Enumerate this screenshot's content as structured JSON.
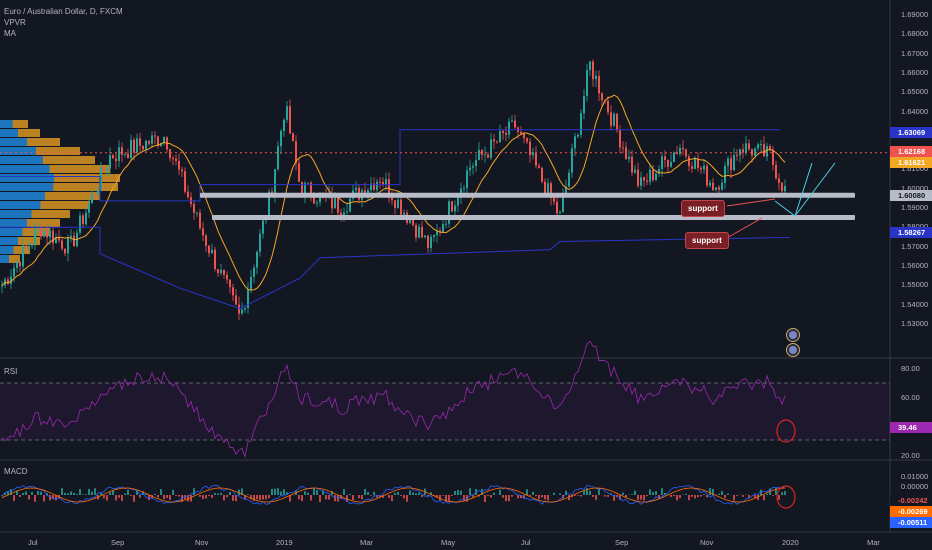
{
  "chart_title": "Euro / Australian Dollar, D, FXCM",
  "indicators": [
    "VPVR",
    "MA"
  ],
  "price_axis": [
    "1.69000",
    "1.68000",
    "1.67000",
    "1.66000",
    "1.65000",
    "1.64000",
    "1.63000",
    "1.62000",
    "1.61000",
    "1.60000",
    "1.59000",
    "1.58000",
    "1.57000",
    "1.56000",
    "1.55000",
    "1.54000",
    "1.53000"
  ],
  "price_labels": {
    "high": "1.63069",
    "red_line": "1.62168",
    "ma": "1.61621",
    "current": "1.60080",
    "low": "1.58267"
  },
  "annotations": {
    "support_1": "support",
    "support_2": "support"
  },
  "rsi": {
    "label": "RSI",
    "value": "39.46",
    "axis": [
      "80.00",
      "60.00",
      "20.00"
    ]
  },
  "macd": {
    "label": "MACD",
    "axis": [
      "0.01000",
      "0.00000"
    ],
    "values": [
      "-0.00242",
      "-0.00269",
      "-0.00511"
    ]
  },
  "time_axis": [
    "Jul",
    "Sep",
    "Nov",
    "2019",
    "Mar",
    "May",
    "Jul",
    "Sep",
    "Nov",
    "2020",
    "Mar"
  ],
  "colors": {
    "background": "#131722",
    "up": "#26a69a",
    "down": "#ef5350",
    "ma_short": "#f5a623",
    "support_line": "#b8bcc8",
    "channel": "#2935c9",
    "rsi": "#9c27b0",
    "macd": "#2962ff",
    "signal": "#ff6d00"
  }
}
